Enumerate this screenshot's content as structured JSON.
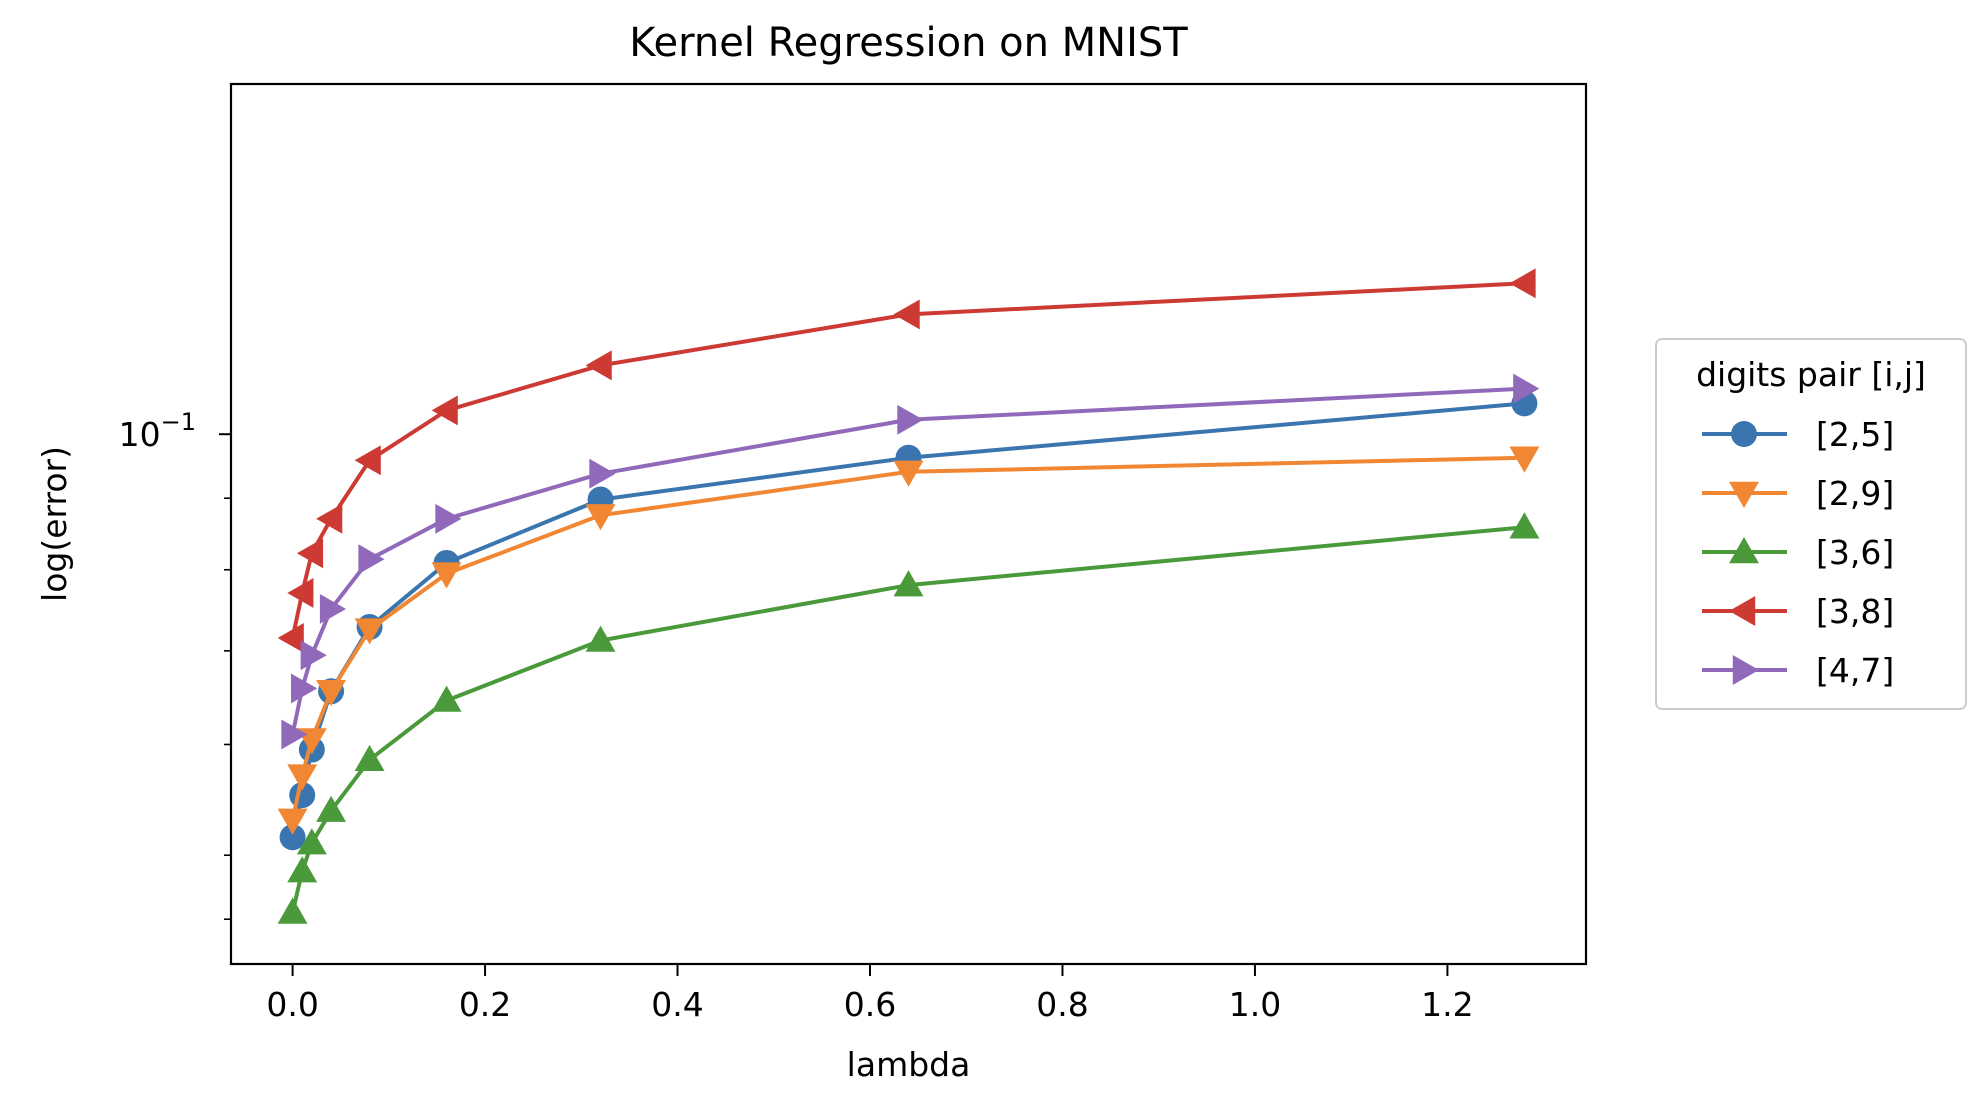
{
  "chart_data": {
    "type": "line",
    "title": "Kernel Regression on MNIST",
    "xlabel": "lambda",
    "ylabel": "log(error)",
    "yscale": "log",
    "xlim": [
      -0.064,
      1.344
    ],
    "ylim": [
      0.0418,
      0.178
    ],
    "x": [
      0.0,
      0.01,
      0.02,
      0.04,
      0.08,
      0.16,
      0.32,
      0.64,
      1.28
    ],
    "xticks": [
      0.0,
      0.2,
      0.4,
      0.6,
      0.8,
      1.0,
      1.2
    ],
    "xtick_labels": [
      "0.0",
      "0.2",
      "0.4",
      "0.6",
      "0.8",
      "1.0",
      "1.2"
    ],
    "ytick_major": {
      "value": 0.1,
      "base": "10",
      "exponent": "−1"
    },
    "yticks_minor": [
      0.045,
      0.05,
      0.06,
      0.07,
      0.08,
      0.09
    ],
    "grid": false,
    "legend": {
      "title": "digits pair [i,j]",
      "location": "center-right, outside plot"
    },
    "series": [
      {
        "name": "[2,5]",
        "color": "#3a75b0",
        "marker": "circle",
        "values": [
          0.0515,
          0.0552,
          0.0595,
          0.0655,
          0.0728,
          0.0809,
          0.0898,
          0.0962,
          0.1052
        ]
      },
      {
        "name": "[2,9]",
        "color": "#f28733",
        "marker": "triangle-down",
        "values": [
          0.053,
          0.057,
          0.0605,
          0.0655,
          0.0725,
          0.0795,
          0.0875,
          0.094,
          0.0962
        ]
      },
      {
        "name": "[3,6]",
        "color": "#4a9a3c",
        "marker": "triangle-up",
        "values": [
          0.0455,
          0.0487,
          0.051,
          0.0538,
          0.0585,
          0.0645,
          0.0712,
          0.078,
          0.0858
        ]
      },
      {
        "name": "[3,8]",
        "color": "#cd3a34",
        "marker": "triangle-left",
        "values": [
          0.0715,
          0.077,
          0.0822,
          0.087,
          0.0958,
          0.104,
          0.112,
          0.1218,
          0.1282
        ]
      },
      {
        "name": "[4,7]",
        "color": "#9169ba",
        "marker": "triangle-right",
        "values": [
          0.061,
          0.0658,
          0.0695,
          0.075,
          0.0814,
          0.087,
          0.0937,
          0.1024,
          0.1078
        ]
      }
    ]
  }
}
